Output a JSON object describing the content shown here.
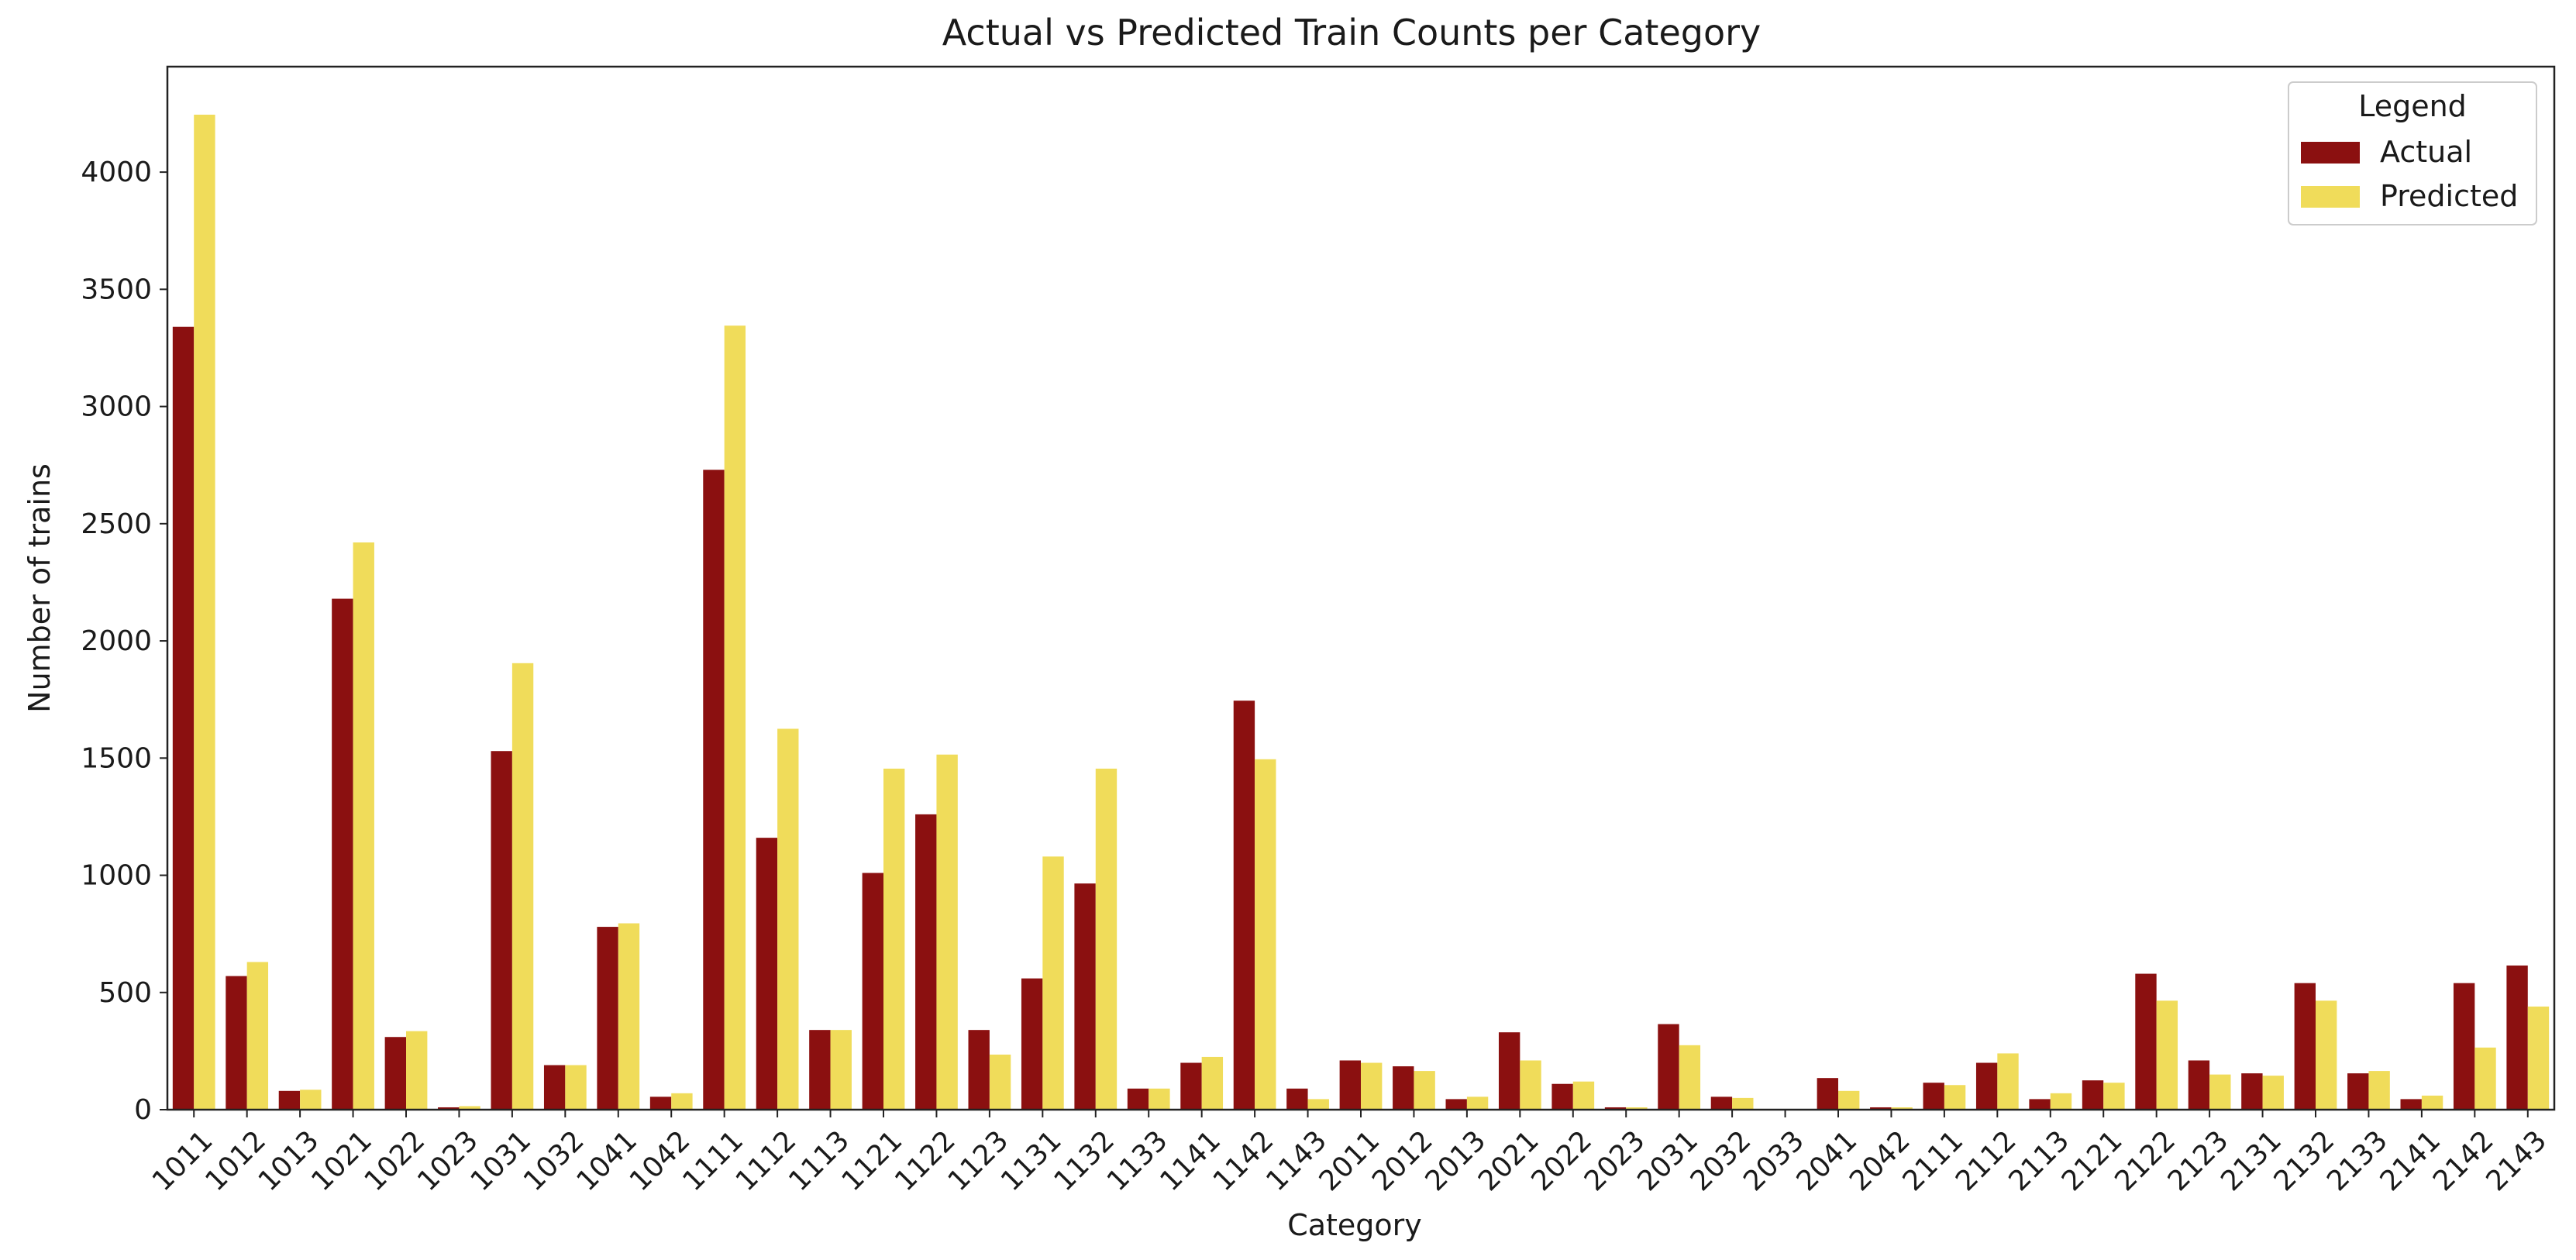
{
  "chart_data": {
    "type": "bar",
    "title": "Actual vs Predicted Train Counts per Category",
    "xlabel": "Category",
    "ylabel": "Number of trains",
    "ylim": [
      0,
      4450
    ],
    "yticks": [
      0,
      500,
      1000,
      1500,
      2000,
      2500,
      3000,
      3500,
      4000
    ],
    "grid": false,
    "legend": {
      "title": "Legend",
      "placement": "top-right"
    },
    "categories": [
      "1011",
      "1012",
      "1013",
      "1021",
      "1022",
      "1023",
      "1031",
      "1032",
      "1041",
      "1042",
      "1111",
      "1112",
      "1113",
      "1121",
      "1122",
      "1123",
      "1131",
      "1132",
      "1133",
      "1141",
      "1142",
      "1143",
      "2011",
      "2012",
      "2013",
      "2021",
      "2022",
      "2023",
      "2031",
      "2032",
      "2033",
      "2041",
      "2042",
      "2111",
      "2112",
      "2113",
      "2121",
      "2122",
      "2123",
      "2131",
      "2132",
      "2133",
      "2141",
      "2142",
      "2143"
    ],
    "series": [
      {
        "name": "Actual",
        "color": "#8b1010",
        "values": [
          3340,
          570,
          80,
          2180,
          310,
          10,
          1530,
          190,
          780,
          55,
          2730,
          1160,
          340,
          1010,
          1260,
          340,
          560,
          965,
          90,
          200,
          1745,
          90,
          210,
          185,
          45,
          330,
          110,
          10,
          365,
          55,
          0,
          135,
          10,
          115,
          200,
          45,
          125,
          580,
          210,
          155,
          540,
          155,
          45,
          540,
          615
        ]
      },
      {
        "name": "Predicted",
        "color": "#f0dc5a",
        "values": [
          4245,
          630,
          85,
          2420,
          335,
          15,
          1905,
          190,
          795,
          70,
          3345,
          1625,
          340,
          1455,
          1515,
          235,
          1080,
          1455,
          90,
          225,
          1495,
          45,
          200,
          165,
          55,
          210,
          120,
          10,
          275,
          50,
          0,
          80,
          10,
          105,
          240,
          70,
          115,
          465,
          150,
          145,
          465,
          165,
          60,
          265,
          440
        ]
      }
    ]
  }
}
